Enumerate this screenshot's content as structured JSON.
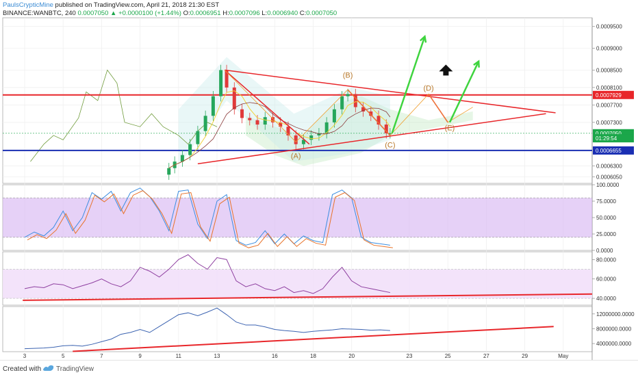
{
  "header": {
    "author": "PaulsCrypticMine",
    "published": " published on TradingView.com, April 21, 2018 21:30 EST",
    "symbol": "BINANCE:WANBTC, 240",
    "last": "0.0007050",
    "change_arrow": "▲",
    "change": "+0.0000100 (+1.44%)",
    "o_label": "O:",
    "o_value": "0.0006951",
    "h_label": "H:",
    "h_value": "0.0007096",
    "l_label": "L:",
    "l_value": "0.0006940",
    "c_label": "C:",
    "c_value": "0.0007050"
  },
  "footer": {
    "created": "Created with",
    "brand": "TradingView"
  },
  "chart_data": [
    {
      "type": "line",
      "panel": "price",
      "y_ticks": [
        "0.0009500",
        "0.0009000",
        "0.0008500",
        "0.0008100",
        "0.0007700",
        "0.0007300",
        "0.0006300",
        "0.0006050"
      ],
      "ylim": [
        0.00059,
        0.00097
      ],
      "badges": [
        {
          "label": "0.0007929",
          "value": 0.0007929,
          "color": "#e8262a"
        },
        {
          "label": "0.0007050",
          "value": 0.000705,
          "color": "#1ba74a"
        },
        {
          "label": "01:29:54",
          "value": 0.0006935,
          "color": "#1ba74a"
        },
        {
          "label": "0.0006655",
          "value": 0.0006655,
          "color": "#1a2fb3"
        }
      ],
      "horizontal_lines": [
        {
          "name": "resistance",
          "value": 0.0007929,
          "color": "#e8262a"
        },
        {
          "name": "support",
          "value": 0.0006655,
          "color": "#1a2fb3"
        }
      ],
      "wave_labels": [
        {
          "text": "(A)",
          "day": 17.1,
          "value": 0.0006472
        },
        {
          "text": "(B)",
          "day": 19.8,
          "value": 0.0008325
        },
        {
          "text": "(C)",
          "day": 22.0,
          "value": 0.0006725
        },
        {
          "text": "(D)",
          "day": 24.0,
          "value": 0.000803
        },
        {
          "text": "(E)",
          "day": 25.1,
          "value": 0.000712
        }
      ],
      "close_series": {
        "days": [
          10.5,
          10.8,
          11.2,
          11.6,
          12.0,
          12.4,
          12.8,
          13.2,
          13.5,
          13.9,
          14.3,
          14.7,
          15.1,
          15.5,
          15.9,
          16.3,
          16.7,
          17.1,
          17.5,
          17.9,
          18.3,
          18.7,
          19.1,
          19.5,
          19.8,
          20.2,
          20.6,
          21.0,
          21.4,
          21.8,
          22.0
        ],
        "close": [
          0.000625,
          0.00064,
          0.000655,
          0.00068,
          0.00071,
          0.000745,
          0.00079,
          0.00085,
          0.00081,
          0.00076,
          0.00074,
          0.000735,
          0.000725,
          0.000742,
          0.00073,
          0.00072,
          0.0007,
          0.00068,
          0.00069,
          0.0007,
          0.000705,
          0.00073,
          0.00076,
          0.00079,
          0.000795,
          0.000765,
          0.000755,
          0.000745,
          0.000725,
          0.000705,
          0.000705
        ]
      },
      "x_ticks": [
        "3",
        "5",
        "7",
        "9",
        "11",
        "13",
        "16",
        "18",
        "20",
        "23",
        "25",
        "27",
        "29",
        "May"
      ]
    },
    {
      "type": "line",
      "panel": "stochastic",
      "y_ticks": [
        "100.0000",
        "75.0000",
        "50.0000",
        "25.0000",
        "0.0000"
      ],
      "ylim": [
        0,
        100
      ],
      "band": [
        20,
        80
      ],
      "series": [
        {
          "days": [
            3,
            3.5,
            4,
            4.5,
            5,
            5.5,
            6,
            6.5,
            7,
            7.5,
            8,
            8.5,
            9,
            9.5,
            10,
            10.5,
            11,
            11.5,
            12,
            12.5,
            13,
            13.5,
            14,
            14.5,
            15,
            15.5,
            16,
            16.5,
            17,
            17.5,
            18,
            18.5,
            19,
            19.5,
            20,
            20.5,
            21,
            21.5,
            22
          ],
          "values": [
            20,
            28,
            22,
            35,
            60,
            30,
            50,
            88,
            78,
            90,
            60,
            88,
            95,
            82,
            60,
            30,
            90,
            92,
            40,
            18,
            75,
            85,
            15,
            8,
            12,
            30,
            10,
            25,
            10,
            22,
            15,
            12,
            85,
            92,
            80,
            20,
            12,
            10,
            8
          ]
        }
      ]
    },
    {
      "type": "line",
      "panel": "rsi",
      "y_ticks": [
        "80.0000",
        "60.0000",
        "40.0000"
      ],
      "ylim": [
        33,
        88
      ],
      "band": [
        40,
        70
      ],
      "series": [
        {
          "days": [
            3,
            3.5,
            4,
            4.5,
            5,
            5.5,
            6,
            6.5,
            7,
            7.5,
            8,
            8.5,
            9,
            9.5,
            10,
            10.5,
            11,
            11.5,
            12,
            12.5,
            13,
            13.5,
            14,
            14.5,
            15,
            15.5,
            16,
            16.5,
            17,
            17.5,
            18,
            18.5,
            19,
            19.5,
            20,
            20.5,
            21,
            21.5,
            22
          ],
          "values": [
            50,
            52,
            51,
            55,
            54,
            50,
            53,
            56,
            60,
            55,
            52,
            58,
            72,
            68,
            62,
            70,
            80,
            85,
            76,
            70,
            82,
            80,
            58,
            52,
            55,
            50,
            48,
            52,
            46,
            48,
            45,
            50,
            62,
            72,
            58,
            52,
            50,
            48,
            46
          ]
        }
      ],
      "trendline": [
        {
          "day": 2.9,
          "value": 38.0
        },
        {
          "day": 31.0,
          "value": 44.5
        }
      ]
    },
    {
      "type": "line",
      "panel": "volume-oscillator",
      "y_ticks": [
        "12000000.0000",
        "8000000.0000",
        "4000000.0000"
      ],
      "ylim": [
        1800000,
        14000000
      ],
      "series": [
        {
          "days": [
            3,
            3.5,
            4,
            4.5,
            5,
            5.5,
            6,
            6.5,
            7,
            7.5,
            8,
            8.5,
            9,
            9.5,
            10,
            10.5,
            11,
            11.5,
            12,
            12.5,
            13,
            13.5,
            14,
            14.5,
            15,
            15.5,
            16,
            16.5,
            17,
            17.5,
            18,
            18.5,
            19,
            19.5,
            20,
            20.5,
            21,
            21.5,
            22
          ],
          "values": [
            2600000,
            2700000,
            2800000,
            3000000,
            3400000,
            3500000,
            3300000,
            3800000,
            4500000,
            5200000,
            6500000,
            7000000,
            7800000,
            7000000,
            8600000,
            10200000,
            11800000,
            12300000,
            11500000,
            12500000,
            13600000,
            11800000,
            9800000,
            9000000,
            9000000,
            8500000,
            7800000,
            7500000,
            7300000,
            7000000,
            7300000,
            7500000,
            7700000,
            8000000,
            7900000,
            7800000,
            7600000,
            7700000,
            7500000
          ]
        }
      ],
      "trendline": [
        {
          "day": 5.5,
          "value": 1900000
        },
        {
          "day": 30.5,
          "value": 8600000
        }
      ]
    }
  ]
}
